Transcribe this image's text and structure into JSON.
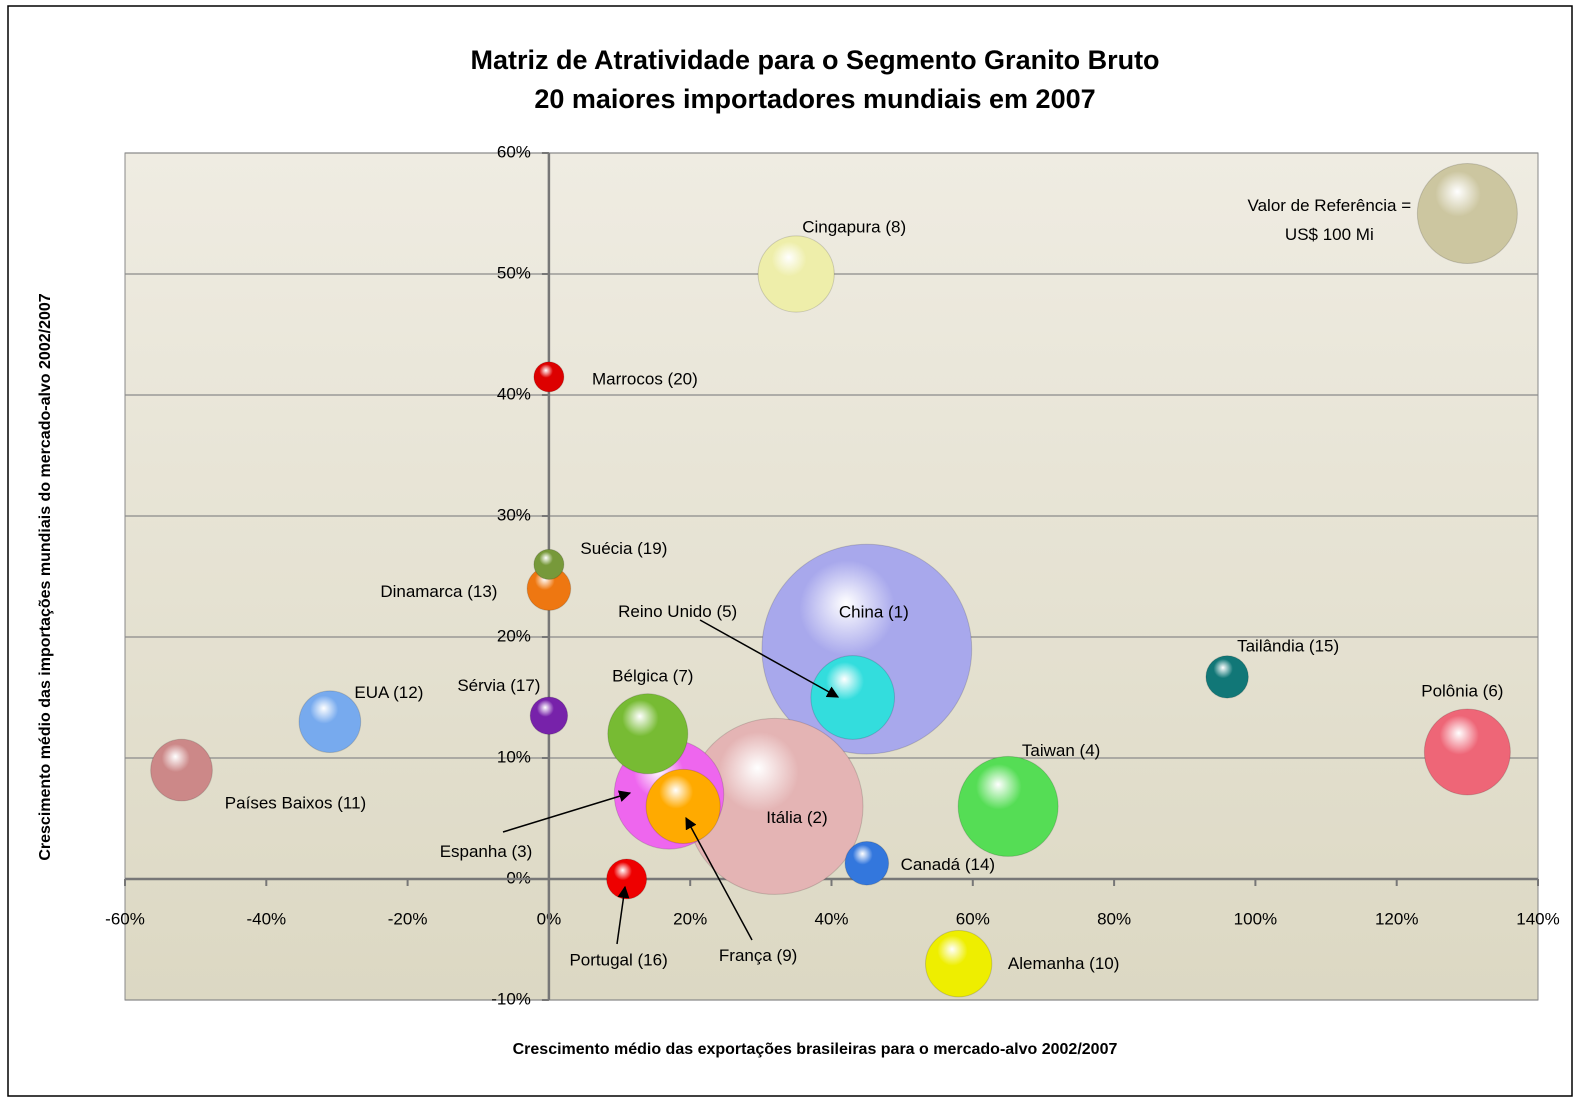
{
  "chart_data": {
    "type": "bubble",
    "title": [
      "Matriz de Atratividade para o Segmento Granito Bruto",
      "20 maiores importadores mundiais em 2007"
    ],
    "x_label": "Crescimento médio das exportações brasileiras para o mercado-alvo 2002/2007",
    "y_label": "Crescimento médio das importações mundiais do mercado-alvo 2002/2007",
    "xlim": [
      -60,
      140
    ],
    "xticks": [
      {
        "value": -60,
        "label": "-60%"
      },
      {
        "value": -40,
        "label": "-40%"
      },
      {
        "value": -20,
        "label": "-20%"
      },
      {
        "value": 0,
        "label": "0%"
      },
      {
        "value": 20,
        "label": "20%"
      },
      {
        "value": 40,
        "label": "40%"
      },
      {
        "value": 60,
        "label": "60%"
      },
      {
        "value": 80,
        "label": "80%"
      },
      {
        "value": 100,
        "label": "100%"
      },
      {
        "value": 120,
        "label": "120%"
      },
      {
        "value": 140,
        "label": "140%"
      }
    ],
    "ylim": [
      -10,
      60
    ],
    "yticks": [
      {
        "value": -10,
        "label": "-10%"
      },
      {
        "value": 0,
        "label": "0%"
      },
      {
        "value": 10,
        "label": "10%"
      },
      {
        "value": 20,
        "label": "20%"
      },
      {
        "value": 30,
        "label": "30%"
      },
      {
        "value": 40,
        "label": "40%"
      },
      {
        "value": 50,
        "label": "50%"
      },
      {
        "value": 60,
        "label": "60%"
      }
    ],
    "grid": true,
    "series": [
      {
        "name": "China (1)",
        "color": "#a8a8ec",
        "x": 45,
        "y": 19,
        "size": 440
      },
      {
        "name": "Itália (2)",
        "color": "#e4b4b4",
        "x": 32,
        "y": 6,
        "size": 310
      },
      {
        "name": "Espanha (3)",
        "color": "#ee66ee",
        "x": 17,
        "y": 7,
        "size": 120
      },
      {
        "name": "Taiwan (4)",
        "color": "#55dd55",
        "x": 65,
        "y": 6,
        "size": 100
      },
      {
        "name": "Reino Unido (5)",
        "color": "#33dddd",
        "x": 43,
        "y": 15,
        "size": 70
      },
      {
        "name": "Polônia (6)",
        "color": "#ee6677",
        "x": 130,
        "y": 10.5,
        "size": 74
      },
      {
        "name": "Bélgica (7)",
        "color": "#77bb33",
        "x": 14,
        "y": 12,
        "size": 64
      },
      {
        "name": "Cingapura (8)",
        "color": "#eeeeaa",
        "x": 35,
        "y": 50,
        "size": 58
      },
      {
        "name": "França (9)",
        "color": "#ffaa00",
        "x": 19,
        "y": 6,
        "size": 55
      },
      {
        "name": "Alemanha (10)",
        "color": "#eeee00",
        "x": 58,
        "y": -7,
        "size": 44
      },
      {
        "name": "Países Baixos (11)",
        "color": "#cc8888",
        "x": -52,
        "y": 9,
        "size": 38
      },
      {
        "name": "EUA (12)",
        "color": "#77aaee",
        "x": -31,
        "y": 13,
        "size": 38
      },
      {
        "name": "Dinamarca (13)",
        "color": "#ee7711",
        "x": 0,
        "y": 24,
        "size": 19
      },
      {
        "name": "Canadá (14)",
        "color": "#3377dd",
        "x": 45,
        "y": 1.3,
        "size": 19
      },
      {
        "name": "Tailândia (15)",
        "color": "#117777",
        "x": 96,
        "y": 16.7,
        "size": 18
      },
      {
        "name": "Portugal (16)",
        "color": "#ee0000",
        "x": 11,
        "y": 0,
        "size": 16
      },
      {
        "name": "Sérvia (17)",
        "color": "#7722aa",
        "x": 0,
        "y": 13.5,
        "size": 14
      },
      {
        "name": "Suécia (19)",
        "color": "#77993a",
        "x": 0,
        "y": 26,
        "size": 9
      },
      {
        "name": "Marrocos (20)",
        "color": "#dd0000",
        "x": 0,
        "y": 41.5,
        "size": 9
      }
    ],
    "reference": {
      "label": [
        "Valor de Referência =",
        "US$ 100 Mi"
      ],
      "color": "#ccc6a0",
      "x": 130,
      "y": 55,
      "size": 100
    }
  }
}
